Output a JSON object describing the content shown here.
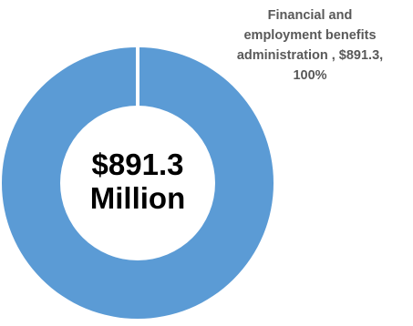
{
  "chart_data": {
    "type": "pie",
    "donut": true,
    "slices": [
      {
        "label": "Financial and employment benefits administration ",
        "value": 891.3,
        "percent": 100,
        "color": "#5B9BD5"
      }
    ],
    "center_label": {
      "line1": "$891.3",
      "line2": "Million"
    },
    "data_labels": [
      {
        "line1": "Financial and",
        "line2": "employment benefits",
        "line3": "administration , $891.3,",
        "line4": "100%"
      }
    ]
  }
}
